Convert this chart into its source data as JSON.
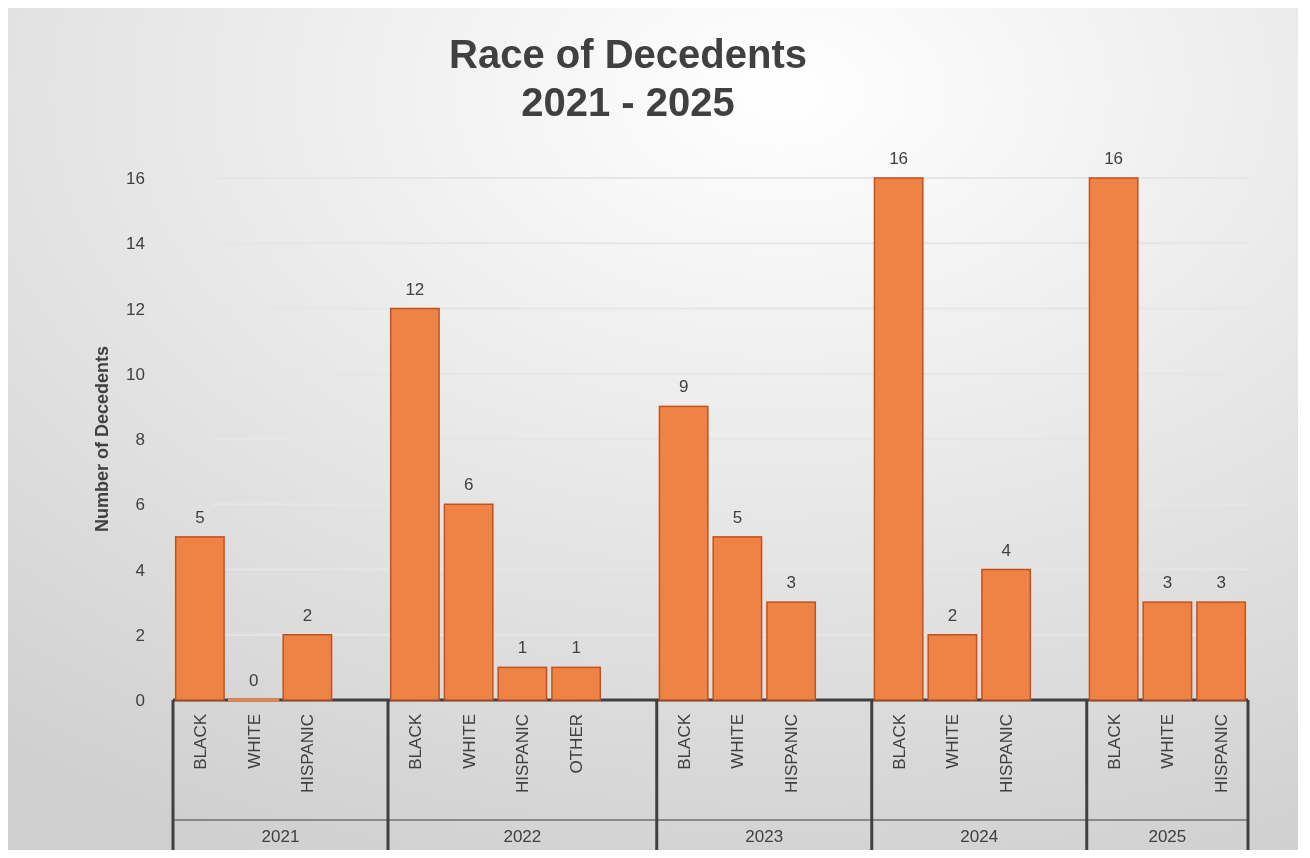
{
  "chart_data": {
    "type": "bar",
    "title": "Race of Decedents\n2021 - 2025",
    "ylabel": "Number of Decedents",
    "categories": [
      "BLACK",
      "WHITE",
      "HISPANIC",
      null,
      "BLACK",
      "WHITE",
      "HISPANIC",
      "OTHER",
      null,
      "BLACK",
      "WHITE",
      "HISPANIC",
      null,
      "BLACK",
      "WHITE",
      "HISPANIC",
      null,
      "BLACK",
      "WHITE",
      "HISPANIC"
    ],
    "values": [
      5,
      0,
      2,
      null,
      12,
      6,
      1,
      1,
      null,
      9,
      5,
      3,
      null,
      16,
      2,
      4,
      null,
      16,
      3,
      3
    ],
    "color": "#ee8346",
    "ylim": [
      0,
      16
    ],
    "yticks": [
      0,
      2,
      4,
      6,
      8,
      10,
      12,
      14,
      16
    ],
    "grid": "y",
    "data_labels": true,
    "annotations": [
      "2021",
      "2022",
      "2023",
      "2024",
      "2025"
    ]
  }
}
